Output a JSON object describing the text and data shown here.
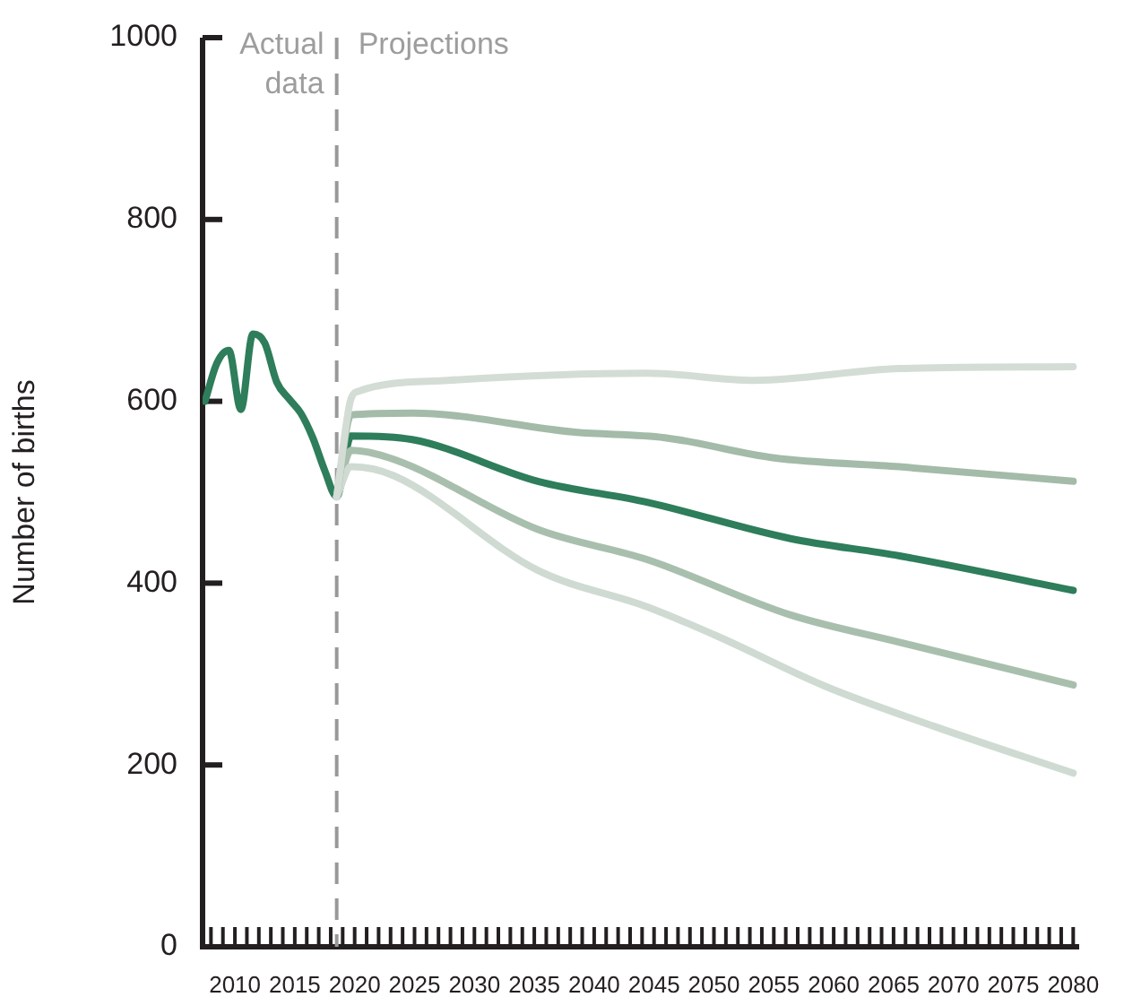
{
  "chart_data": {
    "type": "line",
    "ylabel": "Number of births",
    "xlim": [
      2007.3,
      2080.5
    ],
    "xticks": [
      {
        "value": 2008,
        "label": null
      },
      {
        "value": 2009,
        "label": null
      },
      2010,
      {
        "value": 2011,
        "label": null
      },
      {
        "value": 2012,
        "label": null
      },
      {
        "value": 2013,
        "label": null
      },
      {
        "value": 2014,
        "label": null
      },
      2015,
      {
        "value": 2016,
        "label": null
      },
      {
        "value": 2017,
        "label": null
      },
      {
        "value": 2018,
        "label": null
      },
      {
        "value": 2019,
        "label": null
      },
      2020,
      {
        "value": 2021,
        "label": null
      },
      {
        "value": 2022,
        "label": null
      },
      {
        "value": 2023,
        "label": null
      },
      {
        "value": 2024,
        "label": null
      },
      2025,
      {
        "value": 2026,
        "label": null
      },
      {
        "value": 2027,
        "label": null
      },
      {
        "value": 2028,
        "label": null
      },
      {
        "value": 2029,
        "label": null
      },
      2030,
      {
        "value": 2031,
        "label": null
      },
      {
        "value": 2032,
        "label": null
      },
      {
        "value": 2033,
        "label": null
      },
      {
        "value": 2034,
        "label": null
      },
      2035,
      {
        "value": 2036,
        "label": null
      },
      {
        "value": 2037,
        "label": null
      },
      {
        "value": 2038,
        "label": null
      },
      {
        "value": 2039,
        "label": null
      },
      2040,
      {
        "value": 2041,
        "label": null
      },
      {
        "value": 2042,
        "label": null
      },
      {
        "value": 2043,
        "label": null
      },
      {
        "value": 2044,
        "label": null
      },
      2045,
      {
        "value": 2046,
        "label": null
      },
      {
        "value": 2047,
        "label": null
      },
      {
        "value": 2048,
        "label": null
      },
      {
        "value": 2049,
        "label": null
      },
      2050,
      {
        "value": 2051,
        "label": null
      },
      {
        "value": 2052,
        "label": null
      },
      {
        "value": 2053,
        "label": null
      },
      {
        "value": 2054,
        "label": null
      },
      2055,
      {
        "value": 2056,
        "label": null
      },
      {
        "value": 2057,
        "label": null
      },
      {
        "value": 2058,
        "label": null
      },
      {
        "value": 2059,
        "label": null
      },
      2060,
      {
        "value": 2061,
        "label": null
      },
      {
        "value": 2062,
        "label": null
      },
      {
        "value": 2063,
        "label": null
      },
      {
        "value": 2064,
        "label": null
      },
      2065,
      {
        "value": 2066,
        "label": null
      },
      {
        "value": 2067,
        "label": null
      },
      {
        "value": 2068,
        "label": null
      },
      {
        "value": 2069,
        "label": null
      },
      2070,
      {
        "value": 2071,
        "label": null
      },
      {
        "value": 2072,
        "label": null
      },
      {
        "value": 2073,
        "label": null
      },
      {
        "value": 2074,
        "label": null
      },
      2075,
      {
        "value": 2076,
        "label": null
      },
      {
        "value": 2077,
        "label": null
      },
      {
        "value": 2078,
        "label": null
      },
      {
        "value": 2079,
        "label": null
      },
      2080
    ],
    "ylim": [
      0,
      1000
    ],
    "yticks": [
      0,
      200,
      400,
      600,
      800,
      1000
    ],
    "grid": false,
    "legend": false,
    "marker": "none",
    "line_style": "solid",
    "ref_lines": [
      {
        "axis": "x",
        "value": 2018.5,
        "color": "#999999",
        "line_style": "dashed"
      }
    ],
    "annotations": [
      "Actual data",
      "Projections"
    ],
    "series": [
      {
        "color": "#d3ddd5",
        "x": [
          2018.5,
          2019.7,
          2020.3,
          2027.8,
          2044.4,
          2053.4,
          2065.5,
          2080
        ],
        "values": [
          495,
          603,
          611,
          623,
          631,
          623,
          636,
          638
        ]
      },
      {
        "color": "#a3bba8",
        "x": [
          2018.5,
          2019.7,
          2024.8,
          2038.4,
          2045.9,
          2054.9,
          2065.5,
          2080
        ],
        "values": [
          495,
          585,
          587,
          566,
          560,
          538,
          528,
          512
        ]
      },
      {
        "color": "#cfdbd2",
        "x": [
          2018.5,
          2019.7,
          2023.3,
          2035.3,
          2044.4,
          2050.4,
          2059.4,
          2068.5,
          2080
        ],
        "values": [
          495,
          528,
          518,
          414,
          374,
          341,
          286,
          242,
          191
        ]
      },
      {
        "color": "#a9bfae",
        "x": [
          2018.5,
          2019.7,
          2023.3,
          2035.3,
          2044.4,
          2056.4,
          2065.5,
          2080
        ],
        "values": [
          495,
          546,
          536,
          459,
          426,
          365,
          335,
          288
        ]
      },
      {
        "color": "#2e7d5b",
        "x": [
          2007.5,
          2008.5,
          2009.5,
          2010.5,
          2011.5,
          2012.5,
          2013.5,
          2014.5,
          2015.5,
          2016.5,
          2017.5,
          2018.5,
          2019.7,
          2024.8,
          2035.3,
          2044.4,
          2056.4,
          2065.5,
          2080
        ],
        "values": [
          600,
          642,
          656,
          591,
          674,
          664,
          621,
          603,
          587,
          560,
          524,
          495,
          562,
          558,
          512,
          489,
          449,
          430,
          392
        ]
      }
    ]
  }
}
